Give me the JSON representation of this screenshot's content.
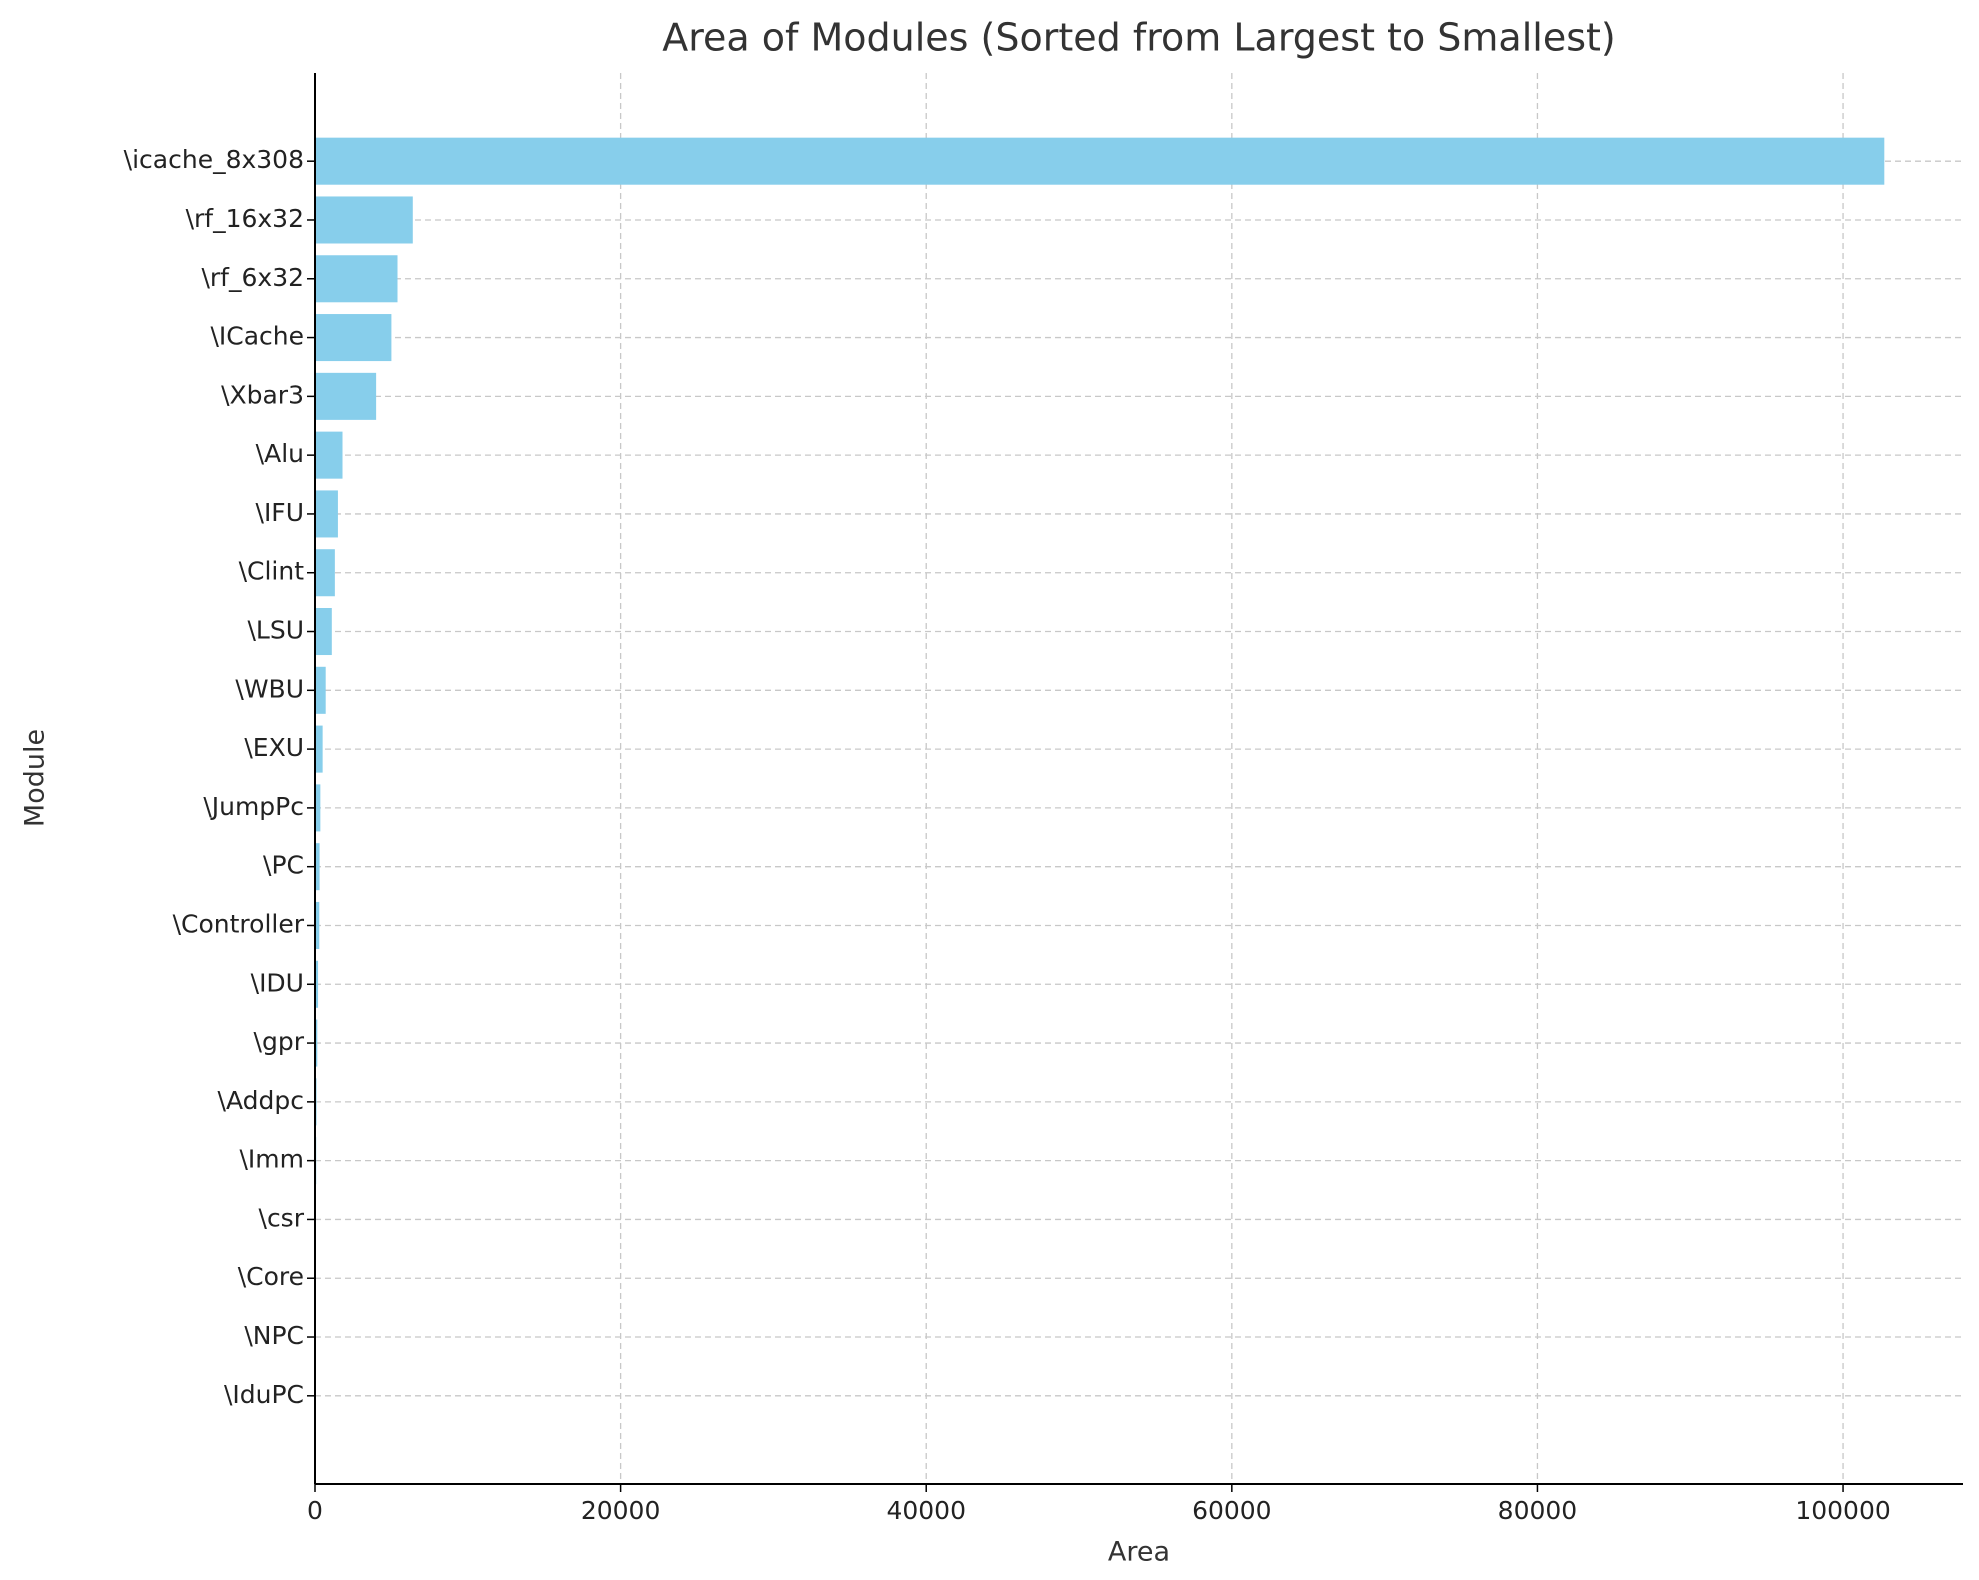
{
  "chart_data": {
    "type": "barh",
    "title": "Area of Modules (Sorted from Largest to Smallest)",
    "x_label": "Area",
    "y_label": "Module",
    "categories": [
      "\\icache_8x308",
      "\\rf_16x32",
      "\\rf_6x32",
      "\\ICache",
      "\\Xbar3",
      "\\Alu",
      "\\IFU",
      "\\Clint",
      "\\LSU",
      "\\WBU",
      "\\EXU",
      "\\JumpPc",
      "\\PC",
      "\\Controller",
      "\\IDU",
      "\\gpr",
      "\\Addpc",
      "\\Imm",
      "\\csr",
      "\\Core",
      "\\NPC",
      "\\IduPC"
    ],
    "values": [
      102700,
      6400,
      5400,
      5000,
      4000,
      1800,
      1500,
      1300,
      1100,
      700,
      500,
      350,
      300,
      280,
      200,
      150,
      100,
      80,
      40,
      30,
      20,
      10
    ],
    "color": "#87ceeb",
    "xlim": [
      0,
      107850
    ],
    "xticks": [
      0,
      20000,
      40000,
      60000,
      80000,
      100000
    ],
    "grid": true
  }
}
